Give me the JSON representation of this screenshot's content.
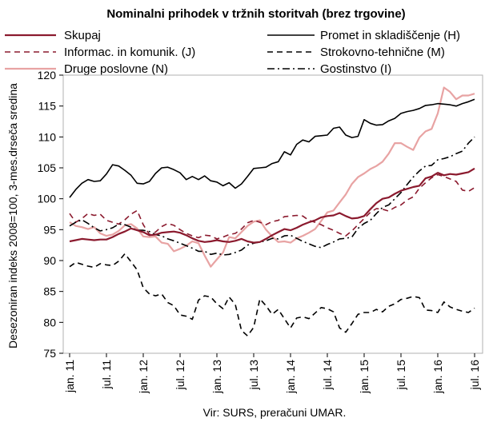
{
  "chart_data": {
    "type": "line",
    "title": "Nominalni prihodek v tržnih storitvah (brez trgovine)",
    "ylabel": "Desezoniran indeks 2008=100, 3-mes.drseča sredina",
    "source": "Vir:  SURS, preračuni UMAR.",
    "ylim": [
      75,
      120
    ],
    "yticks": [
      75,
      80,
      85,
      90,
      95,
      100,
      105,
      110,
      115,
      120
    ],
    "xlim": [
      0,
      66
    ],
    "xtick_labels": [
      "jan. 11",
      "jul. 11",
      "jan. 12",
      "jul. 12",
      "jan. 13",
      "jul. 13",
      "jan. 14",
      "jul. 14",
      "jan. 15",
      "jul. 15",
      "jan. 16",
      "jul. 16"
    ],
    "xtick_months": [
      0,
      6,
      12,
      18,
      24,
      30,
      36,
      42,
      48,
      54,
      60,
      66
    ],
    "grid": false,
    "legend_position": "top",
    "series": [
      {
        "name": "Skupaj",
        "color": "#8b1a2e",
        "style": "solid",
        "width": 2.2,
        "values": [
          93.1,
          93.3,
          93.5,
          93.4,
          93.3,
          93.4,
          93.4,
          93.8,
          94.3,
          94.7,
          95.2,
          94.9,
          94.6,
          94.1,
          94.2,
          94.5,
          94.6,
          94.7,
          94.5,
          94.1,
          93.6,
          93.2,
          93.0,
          93.1,
          93.3,
          93.1,
          93.0,
          93.2,
          93.5,
          93.1,
          92.9,
          93.0,
          93.5,
          94.1,
          94.6,
          95.1,
          94.9,
          95.3,
          95.8,
          96.2,
          96.5,
          97.0,
          97.2,
          97.3,
          97.7,
          97.2,
          96.8,
          96.9,
          97.2,
          98.3,
          99.3,
          100.0,
          100.2,
          100.8,
          101.3,
          101.6,
          101.9,
          102.1,
          103.3,
          103.6,
          104.2,
          103.8,
          104.0,
          103.9,
          104.1,
          104.3,
          104.9
        ]
      },
      {
        "name": "Promet in skladiščenje (H)",
        "color": "#000000",
        "style": "solid",
        "width": 1.6,
        "values": [
          100.2,
          101.5,
          102.5,
          103.1,
          102.8,
          102.9,
          104.0,
          105.5,
          105.3,
          104.6,
          103.8,
          102.5,
          102.4,
          102.8,
          104.1,
          105.0,
          105.1,
          104.7,
          104.2,
          103.1,
          103.6,
          103.1,
          103.7,
          102.9,
          102.7,
          102.1,
          102.6,
          101.7,
          102.4,
          103.6,
          104.9,
          105.0,
          105.1,
          105.7,
          106.0,
          107.6,
          107.1,
          108.8,
          109.5,
          109.2,
          110.1,
          110.2,
          110.3,
          111.4,
          111.6,
          110.3,
          109.9,
          110.1,
          112.8,
          112.2,
          111.9,
          112.0,
          112.6,
          113.0,
          113.8,
          114.1,
          114.3,
          114.6,
          115.1,
          115.2,
          115.4,
          115.3,
          115.2,
          115.0,
          115.4,
          115.7,
          116.1
        ]
      },
      {
        "name": "Informac. in komunik. (J)",
        "color": "#8b1a2e",
        "style": "dash",
        "width": 1.6,
        "values": [
          97.6,
          96.2,
          96.8,
          97.6,
          97.3,
          97.5,
          96.5,
          96.2,
          95.9,
          96.6,
          97.5,
          98.1,
          95.8,
          94.2,
          94.6,
          95.5,
          96.0,
          95.7,
          95.0,
          94.4,
          94.0,
          93.7,
          94.1,
          94.0,
          93.5,
          93.8,
          94.2,
          94.4,
          95.1,
          96.1,
          96.5,
          96.2,
          95.8,
          96.3,
          96.5,
          97.1,
          97.2,
          97.3,
          97.2,
          96.5,
          96.2,
          95.8,
          95.3,
          94.9,
          94.4,
          94.0,
          94.8,
          95.8,
          96.8,
          97.8,
          98.4,
          98.3,
          98.0,
          98.6,
          99.0,
          99.8,
          100.3,
          101.7,
          102.6,
          103.4,
          103.9,
          103.6,
          103.2,
          102.8,
          101.4,
          101.2,
          101.8
        ]
      },
      {
        "name": "Strokovno-tehnične (M)",
        "color": "#000000",
        "style": "dash",
        "width": 1.6,
        "values": [
          89.0,
          89.7,
          89.4,
          89.1,
          88.9,
          89.5,
          89.3,
          89.2,
          89.9,
          91.1,
          89.8,
          88.5,
          85.6,
          84.6,
          84.3,
          84.6,
          83.2,
          82.7,
          81.2,
          81.0,
          80.5,
          83.6,
          84.3,
          84.1,
          83.0,
          82.2,
          84.1,
          82.9,
          78.7,
          77.8,
          79.2,
          83.8,
          82.7,
          81.3,
          82.1,
          80.6,
          79.1,
          80.7,
          80.9,
          80.6,
          81.5,
          82.4,
          82.2,
          81.7,
          79.1,
          78.4,
          79.8,
          81.3,
          81.6,
          81.6,
          82.1,
          81.7,
          82.6,
          83.0,
          83.7,
          83.9,
          84.2,
          84.0,
          82.0,
          81.9,
          81.6,
          83.3,
          82.5,
          82.1,
          81.8,
          81.6,
          82.3
        ]
      },
      {
        "name": "Druge poslovne (N)",
        "color": "#e8a3a3",
        "style": "solid",
        "width": 2.2,
        "values": [
          96.2,
          95.6,
          95.4,
          95.1,
          95.4,
          94.4,
          94.0,
          94.2,
          94.8,
          95.7,
          95.9,
          95.2,
          93.9,
          93.8,
          93.9,
          92.9,
          92.7,
          91.5,
          91.9,
          92.4,
          93.1,
          92.8,
          90.8,
          89.0,
          90.2,
          91.3,
          93.8,
          93.6,
          94.6,
          95.6,
          96.3,
          96.5,
          95.0,
          93.9,
          93.0,
          93.1,
          92.9,
          93.6,
          94.0,
          94.5,
          95.1,
          96.4,
          97.8,
          98.1,
          99.4,
          100.7,
          102.4,
          103.5,
          104.1,
          104.8,
          105.3,
          106.0,
          107.3,
          109.0,
          109.0,
          108.4,
          107.9,
          109.9,
          110.9,
          111.3,
          113.8,
          118.0,
          117.3,
          116.1,
          116.7,
          116.7,
          117.0
        ]
      },
      {
        "name": "Gostinstvo (I)",
        "color": "#000000",
        "style": "dashdot",
        "width": 1.6,
        "values": [
          95.6,
          96.2,
          96.6,
          96.0,
          95.3,
          94.8,
          95.0,
          95.3,
          95.9,
          95.8,
          95.4,
          94.9,
          94.9,
          94.7,
          94.2,
          94.0,
          93.5,
          93.2,
          92.8,
          92.4,
          92.0,
          91.5,
          91.5,
          91.0,
          91.2,
          90.9,
          91.0,
          91.3,
          91.7,
          92.5,
          92.8,
          93.0,
          93.2,
          93.6,
          93.5,
          94.0,
          94.1,
          93.6,
          93.1,
          92.7,
          92.3,
          92.1,
          92.6,
          93.0,
          93.5,
          93.6,
          93.8,
          95.2,
          96.0,
          96.5,
          97.6,
          98.6,
          99.0,
          100.0,
          101.0,
          102.3,
          103.5,
          104.5,
          105.3,
          105.4,
          106.3,
          106.5,
          106.8,
          107.3,
          107.7,
          109.0,
          110.0
        ]
      }
    ]
  }
}
